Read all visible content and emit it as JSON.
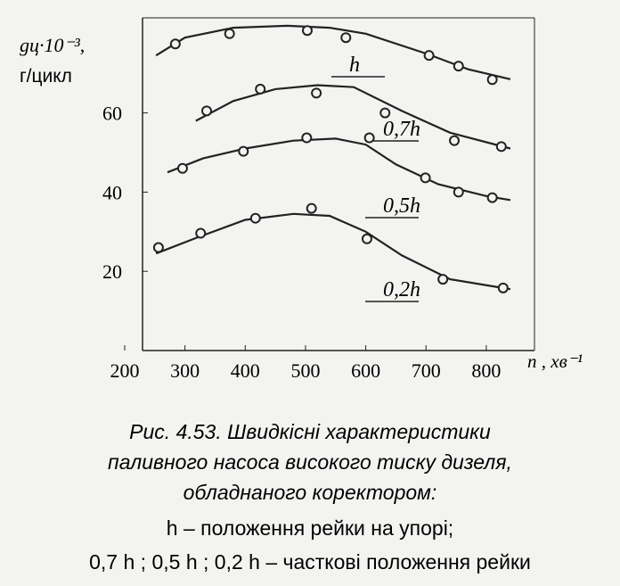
{
  "chart_data": {
    "type": "line",
    "y_label": [
      "gц·10⁻³,",
      "г/цикл"
    ],
    "x_label": "n , хв⁻¹",
    "xlim": [
      200,
      880
    ],
    "xticks": [
      200,
      300,
      400,
      500,
      600,
      700,
      800
    ],
    "ylim": [
      0,
      84
    ],
    "yticks": [
      20,
      40,
      60
    ],
    "color": "#222222",
    "series": [
      {
        "name": "h",
        "x": [
          252,
          300,
          380,
          470,
          540,
          600,
          700,
          770,
          840
        ],
        "values": [
          74.5,
          79,
          81.5,
          82,
          81.5,
          80,
          75,
          71,
          68.5
        ]
      },
      {
        "name": "0,7h",
        "x": [
          318,
          380,
          450,
          520,
          580,
          660,
          740,
          840
        ],
        "values": [
          58,
          63,
          66,
          67,
          66.5,
          60.5,
          55,
          51
        ]
      },
      {
        "name": "0,5h",
        "x": [
          271,
          330,
          400,
          480,
          550,
          600,
          650,
          720,
          800,
          840
        ],
        "values": [
          45,
          48.5,
          51,
          53,
          53.5,
          52,
          47,
          42,
          39,
          38
        ]
      },
      {
        "name": "0,2h",
        "x": [
          252,
          320,
          400,
          480,
          540,
          600,
          660,
          740,
          820,
          840
        ],
        "values": [
          24.5,
          28.5,
          33,
          34.5,
          34,
          30,
          24,
          18,
          16,
          15.5
        ]
      }
    ],
    "markers": {
      "x": [
        284,
        374,
        503,
        567,
        705,
        754,
        810,
        336,
        425,
        518,
        632,
        747,
        825,
        296,
        397,
        502,
        606,
        699,
        754,
        810,
        256,
        326,
        417,
        510,
        602,
        728,
        828
      ],
      "values": [
        77.4,
        80,
        80.8,
        79,
        74.5,
        71.8,
        68.4,
        60.5,
        66,
        65,
        60,
        53,
        51.5,
        46,
        50.3,
        53.7,
        53.7,
        43.6,
        40,
        38.6,
        26,
        29.6,
        33.4,
        35.9,
        28.2,
        18,
        15.8
      ]
    },
    "caption": [
      "Рис. 4.53. Швидкісні характеристики",
      "паливного насоса високого тиску дизеля,",
      "обладнаного коректором:",
      "h – положення рейки на упорі;",
      "0,7 h ; 0,5 h ; 0,2 h – часткові положення рейки"
    ]
  }
}
